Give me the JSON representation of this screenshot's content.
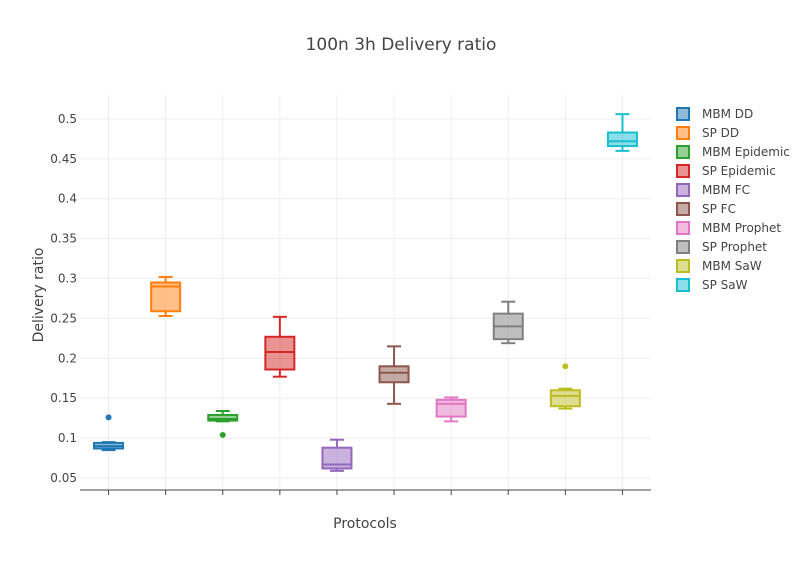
{
  "chart_data": {
    "type": "box",
    "title": "100n 3h Delivery ratio",
    "xlabel": "Protocols",
    "ylabel": "Delivery ratio",
    "ylim": [
      0.035,
      0.53
    ],
    "yticks": [
      "0.05",
      "0.1",
      "0.15",
      "0.2",
      "0.25",
      "0.3",
      "0.35",
      "0.4",
      "0.45",
      "0.5"
    ],
    "grid": true,
    "legend_position": "right",
    "series": [
      {
        "name": "MBM DD",
        "color": "#1f77b4",
        "min": 0.085,
        "q1": 0.087,
        "median": 0.09,
        "q3": 0.094,
        "max": 0.095,
        "outliers": [
          0.126
        ]
      },
      {
        "name": "SP DD",
        "color": "#ff7f0e",
        "min": 0.253,
        "q1": 0.259,
        "median": 0.29,
        "q3": 0.295,
        "max": 0.302,
        "outliers": []
      },
      {
        "name": "MBM Epidemic",
        "color": "#2ca02c",
        "min": 0.121,
        "q1": 0.122,
        "median": 0.124,
        "q3": 0.129,
        "max": 0.134,
        "outliers": [
          0.104
        ]
      },
      {
        "name": "SP Epidemic",
        "color": "#d62728",
        "min": 0.177,
        "q1": 0.186,
        "median": 0.208,
        "q3": 0.227,
        "max": 0.252,
        "outliers": []
      },
      {
        "name": "MBM FC",
        "color": "#9467bd",
        "min": 0.059,
        "q1": 0.062,
        "median": 0.067,
        "q3": 0.088,
        "max": 0.098,
        "outliers": []
      },
      {
        "name": "SP FC",
        "color": "#8c564b",
        "min": 0.143,
        "q1": 0.17,
        "median": 0.182,
        "q3": 0.19,
        "max": 0.215,
        "outliers": []
      },
      {
        "name": "MBM Prophet",
        "color": "#e377c2",
        "min": 0.121,
        "q1": 0.127,
        "median": 0.143,
        "q3": 0.148,
        "max": 0.151,
        "outliers": []
      },
      {
        "name": "SP Prophet",
        "color": "#7f7f7f",
        "min": 0.219,
        "q1": 0.224,
        "median": 0.24,
        "q3": 0.256,
        "max": 0.271,
        "outliers": []
      },
      {
        "name": "MBM SaW",
        "color": "#bcbd22",
        "min": 0.137,
        "q1": 0.14,
        "median": 0.153,
        "q3": 0.16,
        "max": 0.162,
        "outliers": [
          0.19
        ]
      },
      {
        "name": "SP SaW",
        "color": "#17becf",
        "min": 0.46,
        "q1": 0.466,
        "median": 0.472,
        "q3": 0.483,
        "max": 0.506,
        "outliers": []
      }
    ]
  }
}
